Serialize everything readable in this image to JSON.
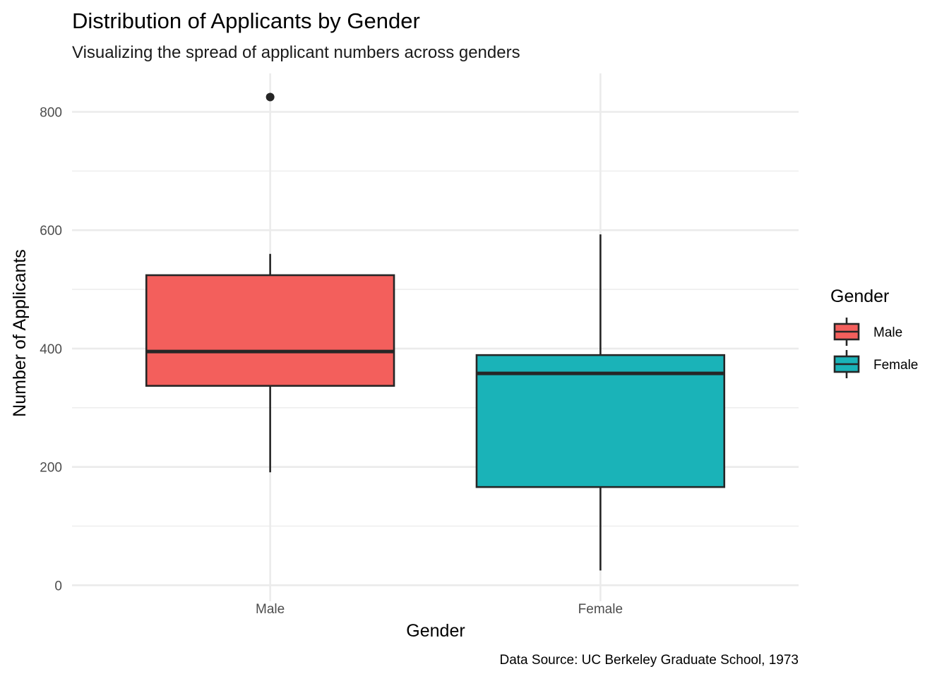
{
  "chart_data": {
    "type": "box",
    "title": "Distribution of Applicants by Gender",
    "subtitle": "Visualizing the spread of applicant numbers across genders",
    "xlabel": "Gender",
    "ylabel": "Number of Applicants",
    "caption": "Data Source: UC Berkeley Graduate School, 1973",
    "categories": [
      "Male",
      "Female"
    ],
    "ylim": [
      -27,
      865
    ],
    "y_ticks": [
      0,
      200,
      400,
      600,
      800
    ],
    "y_tick_labels": [
      "0",
      "200",
      "400",
      "600",
      "800"
    ],
    "y_minor_ticks": [
      100,
      300,
      500,
      700
    ],
    "grid": true,
    "legend": {
      "title": "Gender",
      "placement": "right",
      "entries": [
        "Male",
        "Female"
      ]
    },
    "series": [
      {
        "name": "Male",
        "color": "#F35F5C",
        "whisker_low": 191,
        "q1": 337,
        "median": 395,
        "q3": 524,
        "whisker_high": 560,
        "outliers": [
          825
        ]
      },
      {
        "name": "Female",
        "color": "#1AB3B8",
        "whisker_low": 25,
        "q1": 166,
        "median": 358,
        "q3": 389,
        "whisker_high": 593,
        "outliers": []
      }
    ]
  }
}
